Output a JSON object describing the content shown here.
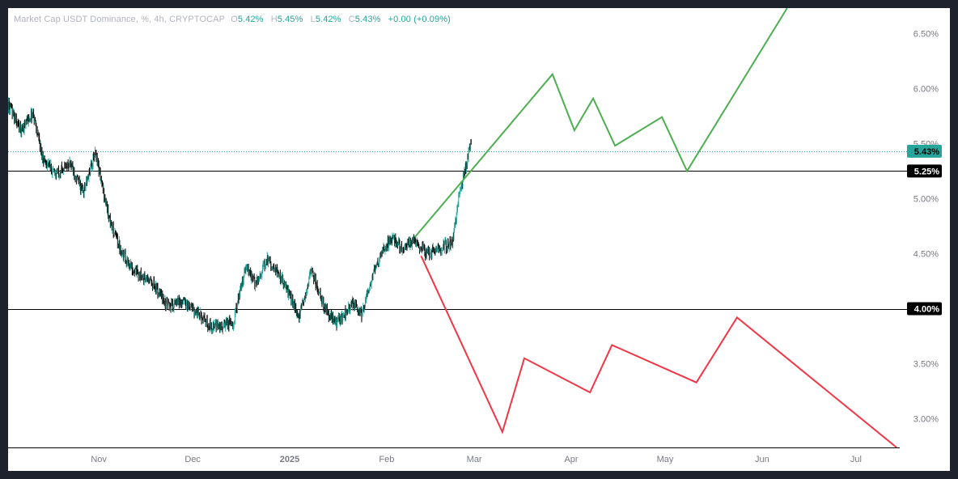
{
  "legend": {
    "title": "Market Cap USDT Dominance, %, 4h, CRYPTOCAP",
    "o_label": "O",
    "o_value": "5.42%",
    "h_label": "H",
    "h_value": "5.45%",
    "l_label": "L",
    "l_value": "5.42%",
    "c_label": "C",
    "c_value": "5.43%",
    "change": "+0.00 (+0.09%)"
  },
  "colors": {
    "background": "#ffffff",
    "frame": "#1e222d",
    "up": "#26a69a",
    "down": "#000000",
    "green_projection": "#4caf50",
    "red_projection": "#f23645",
    "level_line": "#000000",
    "axis_text": "#787b86"
  },
  "chart_data": {
    "type": "line",
    "title": "Market Cap USDT Dominance, %, 4h, CRYPTOCAP",
    "xlabel": "",
    "ylabel": "",
    "x_ticks": [
      "Nov",
      "Dec",
      "2025",
      "Feb",
      "Mar",
      "Apr",
      "May",
      "Jun",
      "Jul"
    ],
    "x_tick_dates": [
      "2024-11-01",
      "2024-12-01",
      "2025-01-01",
      "2025-02-01",
      "2025-03-01",
      "2025-04-01",
      "2025-05-01",
      "2025-06-01",
      "2025-07-01"
    ],
    "y_ticks": [
      "3.00%",
      "3.50%",
      "4.00%",
      "4.50%",
      "5.00%",
      "5.50%",
      "6.00%",
      "6.50%"
    ],
    "y_tick_values": [
      3.0,
      3.5,
      4.0,
      4.5,
      5.0,
      5.5,
      6.0,
      6.5
    ],
    "ylim": [
      2.74,
      6.73
    ],
    "xlim": [
      "2024-10-03",
      "2025-07-15"
    ],
    "grid": false,
    "last_price": 5.43,
    "last_price_label": "5.43%",
    "horizontal_levels": [
      {
        "value": 5.25,
        "label": "5.25%"
      },
      {
        "value": 4.0,
        "label": "4.00%"
      }
    ],
    "price_series": {
      "name": "",
      "x": [
        "2024-10-03",
        "2024-10-07",
        "2024-10-11",
        "2024-10-14",
        "2024-10-18",
        "2024-10-23",
        "2024-10-27",
        "2024-10-31",
        "2024-11-02",
        "2024-11-05",
        "2024-11-09",
        "2024-11-13",
        "2024-11-18",
        "2024-11-23",
        "2024-11-28",
        "2024-12-03",
        "2024-12-06",
        "2024-12-10",
        "2024-12-14",
        "2024-12-18",
        "2024-12-21",
        "2024-12-25",
        "2024-12-30",
        "2025-01-04",
        "2025-01-08",
        "2025-01-12",
        "2025-01-16",
        "2025-01-21",
        "2025-01-24",
        "2025-01-28",
        "2025-01-31",
        "2025-02-03",
        "2025-02-06",
        "2025-02-10",
        "2025-02-14",
        "2025-02-18",
        "2025-02-22",
        "2025-02-24",
        "2025-02-26",
        "2025-02-28"
      ],
      "values": [
        5.85,
        5.62,
        5.78,
        5.38,
        5.22,
        5.32,
        5.05,
        5.42,
        5.12,
        4.75,
        4.48,
        4.32,
        4.24,
        4.02,
        4.07,
        3.95,
        3.85,
        3.83,
        3.88,
        4.38,
        4.22,
        4.45,
        4.25,
        3.92,
        4.35,
        4.02,
        3.86,
        4.05,
        3.95,
        4.33,
        4.55,
        4.65,
        4.55,
        4.62,
        4.5,
        4.55,
        4.6,
        5.0,
        5.25,
        5.52
      ]
    },
    "series": [
      {
        "name": "",
        "color": "#4caf50",
        "x": [
          "2025-02-10",
          "2025-02-27",
          "2025-03-26",
          "2025-04-02",
          "2025-04-08",
          "2025-04-15",
          "2025-04-30",
          "2025-05-08",
          "2025-06-09"
        ],
        "values": [
          4.65,
          5.22,
          6.13,
          5.62,
          5.91,
          5.48,
          5.74,
          5.25,
          6.73
        ]
      },
      {
        "name": "",
        "color": "#f23645",
        "x": [
          "2025-02-12",
          "2025-03-10",
          "2025-03-17",
          "2025-04-07",
          "2025-04-14",
          "2025-05-11",
          "2025-05-24",
          "2025-07-14"
        ],
        "values": [
          4.48,
          2.88,
          3.55,
          3.24,
          3.67,
          3.33,
          3.92,
          2.74
        ]
      }
    ]
  }
}
